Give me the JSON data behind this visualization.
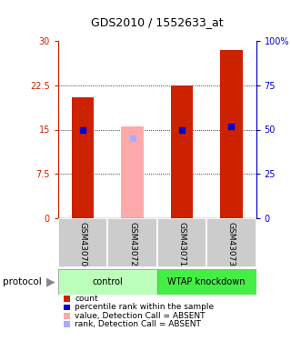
{
  "title": "GDS2010 / 1552633_at",
  "samples": [
    "GSM43070",
    "GSM43072",
    "GSM43071",
    "GSM43073"
  ],
  "red_bar_heights": [
    20.5,
    null,
    22.5,
    28.5
  ],
  "blue_marker_values": [
    15.0,
    null,
    15.0,
    15.5
  ],
  "pink_bar_height": [
    null,
    15.5,
    null,
    null
  ],
  "lavender_marker_value": [
    null,
    13.5,
    null,
    null
  ],
  "ylim_left": [
    0,
    30
  ],
  "ylim_right": [
    0,
    100
  ],
  "yticks_left": [
    0,
    7.5,
    15,
    22.5,
    30
  ],
  "yticks_right": [
    0,
    25,
    50,
    75,
    100
  ],
  "ytick_labels_left": [
    "0",
    "7.5",
    "15",
    "22.5",
    "30"
  ],
  "ytick_labels_right": [
    "0",
    "25",
    "50",
    "75",
    "100%"
  ],
  "left_axis_color": "#cc2200",
  "right_axis_color": "#0000cc",
  "red_color": "#cc2200",
  "blue_color": "#0000cc",
  "pink_color": "#ffaaaa",
  "lavender_color": "#aaaaff",
  "ctrl_color": "#bbffbb",
  "wtap_color": "#44ee44",
  "sample_bg": "#cccccc",
  "legend_items": [
    {
      "label": "count",
      "color": "#cc2200"
    },
    {
      "label": "percentile rank within the sample",
      "color": "#0000cc"
    },
    {
      "label": "value, Detection Call = ABSENT",
      "color": "#ffaaaa"
    },
    {
      "label": "rank, Detection Call = ABSENT",
      "color": "#aaaaff"
    }
  ]
}
